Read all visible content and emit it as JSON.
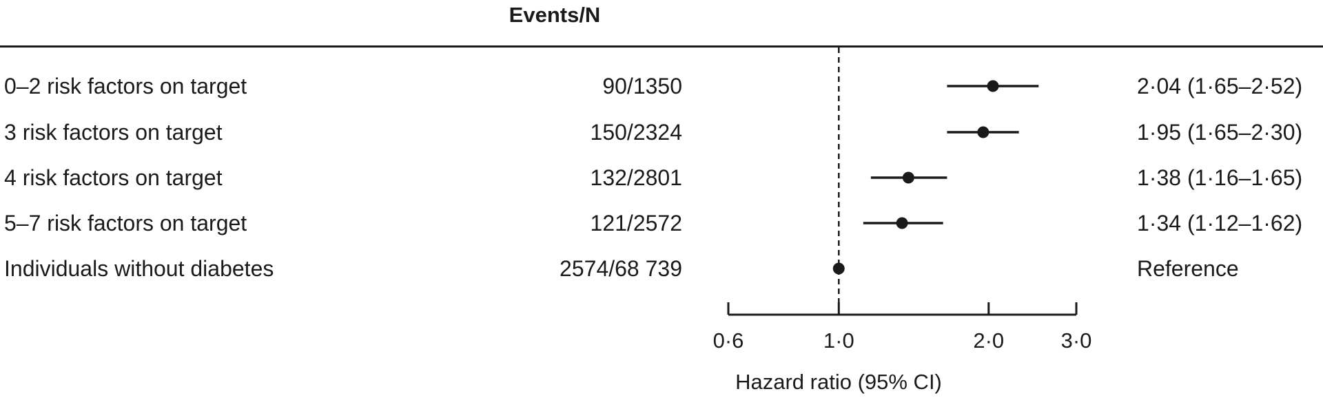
{
  "header": {
    "events_label": "Events/N"
  },
  "rows": [
    {
      "label": "0–2 risk factors on target",
      "events": "90/1350",
      "hr_text": "2·04 (1·65–2·52)"
    },
    {
      "label": "3 risk factors on target",
      "events": "150/2324",
      "hr_text": "1·95 (1·65–2·30)"
    },
    {
      "label": "4 risk factors on target",
      "events": "132/2801",
      "hr_text": "1·38 (1·16–1·65)"
    },
    {
      "label": "5–7 risk factors on target",
      "events": "121/2572",
      "hr_text": "1·34 (1·12–1·62)"
    },
    {
      "label": "Individuals without diabetes",
      "events": "2574/68 739",
      "hr_text": "Reference"
    }
  ],
  "chart_data": {
    "type": "forest",
    "xlabel": "Hazard ratio (95% CI)",
    "scale": "log",
    "xlim": [
      0.6,
      3.0
    ],
    "ticks": [
      {
        "value": 0.6,
        "label": "0·6"
      },
      {
        "value": 1.0,
        "label": "1·0"
      },
      {
        "value": 2.0,
        "label": "2·0"
      },
      {
        "value": 3.0,
        "label": "3·0"
      }
    ],
    "reference_line": 1.0,
    "points": [
      {
        "category": "0–2 risk factors on target",
        "hr": 2.04,
        "lower": 1.65,
        "upper": 2.52
      },
      {
        "category": "3 risk factors on target",
        "hr": 1.95,
        "lower": 1.65,
        "upper": 2.3
      },
      {
        "category": "4 risk factors on target",
        "hr": 1.38,
        "lower": 1.16,
        "upper": 1.65
      },
      {
        "category": "5–7 risk factors on target",
        "hr": 1.34,
        "lower": 1.12,
        "upper": 1.62
      },
      {
        "category": "Individuals without diabetes",
        "hr": 1.0,
        "lower": null,
        "upper": null
      }
    ],
    "colors": {
      "ink": "#1a1a1a"
    }
  }
}
